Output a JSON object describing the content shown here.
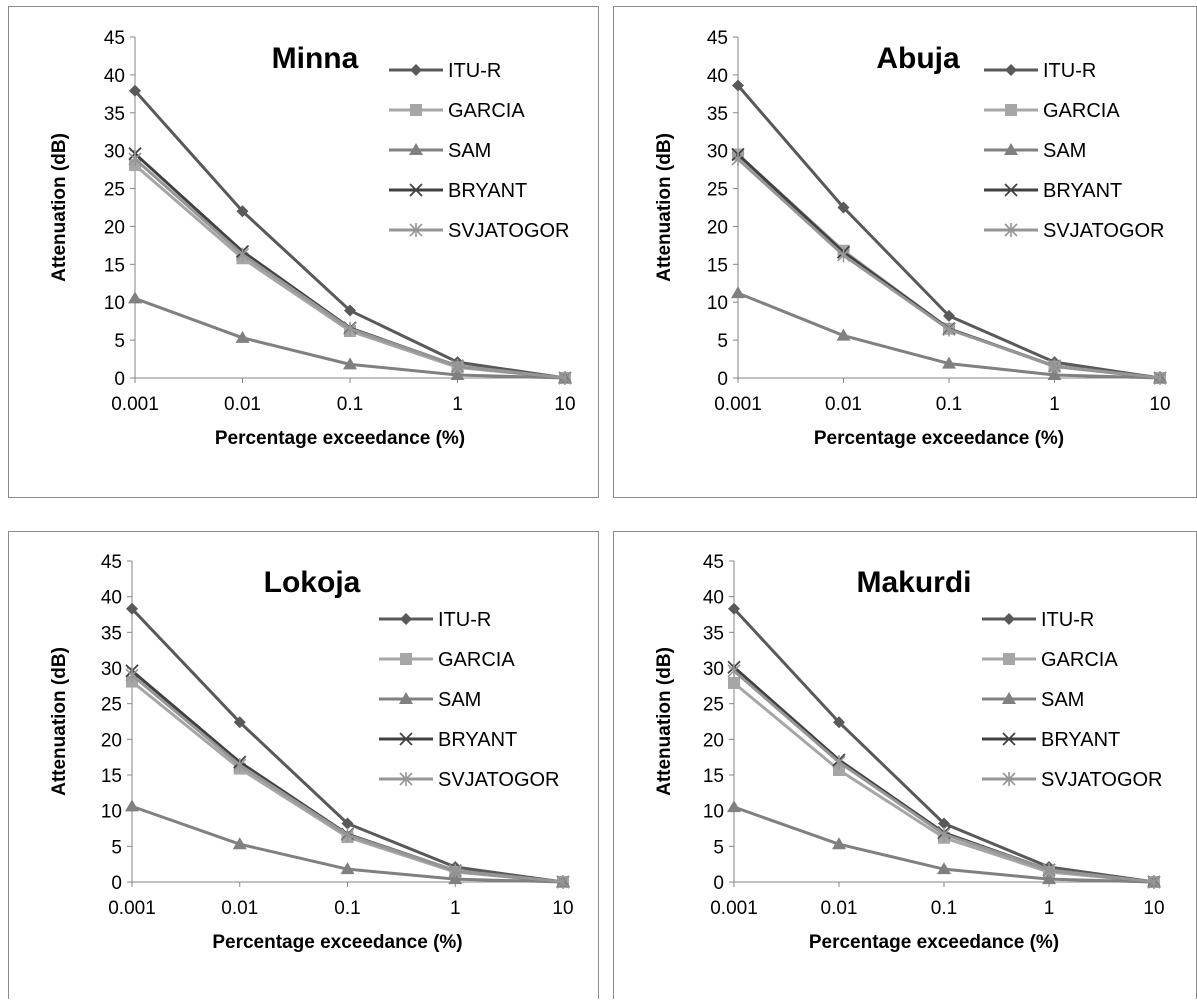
{
  "chart_data": [
    {
      "type": "line",
      "title": "Minna",
      "xlabel": "Percentage exceedance (%)",
      "ylabel": "Attenuation (dB)",
      "x": [
        0.001,
        0.01,
        0.1,
        1,
        10
      ],
      "x_tick_labels": [
        "0.001",
        "0.01",
        "0.1",
        "1",
        "10"
      ],
      "x_scale": "log",
      "ylim": [
        0,
        45
      ],
      "y_ticks": [
        0,
        5,
        10,
        15,
        20,
        25,
        30,
        35,
        40,
        45
      ],
      "grid": false,
      "legend_position": "right",
      "series": [
        {
          "name": "ITU-R",
          "marker": "diamond",
          "color": "#595959",
          "values": [
            37.9,
            22.0,
            8.9,
            2.1,
            0
          ]
        },
        {
          "name": "GARCIA",
          "marker": "square",
          "color": "#a6a6a6",
          "values": [
            28.1,
            15.8,
            6.2,
            1.4,
            0
          ]
        },
        {
          "name": "SAM",
          "marker": "triangle",
          "color": "#808080",
          "values": [
            10.5,
            5.3,
            1.8,
            0.4,
            0
          ]
        },
        {
          "name": "BRYANT",
          "marker": "x",
          "color": "#404040",
          "values": [
            29.6,
            16.7,
            6.6,
            1.6,
            0
          ]
        },
        {
          "name": "SVJATOGOR",
          "marker": "asterisk",
          "color": "#969696",
          "values": [
            28.9,
            16.3,
            6.5,
            1.6,
            0
          ]
        }
      ]
    },
    {
      "type": "line",
      "title": "Abuja",
      "xlabel": "Percentage exceedance (%)",
      "ylabel": "Attenuation (dB)",
      "x": [
        0.001,
        0.01,
        0.1,
        1,
        10
      ],
      "x_tick_labels": [
        "0.001",
        "0.01",
        "0.1",
        "1",
        "10"
      ],
      "x_scale": "log",
      "ylim": [
        0,
        45
      ],
      "y_ticks": [
        0,
        5,
        10,
        15,
        20,
        25,
        30,
        35,
        40,
        45
      ],
      "grid": false,
      "legend_position": "right",
      "series": [
        {
          "name": "ITU-R",
          "marker": "diamond",
          "color": "#595959",
          "values": [
            38.6,
            22.5,
            8.2,
            2.1,
            0
          ]
        },
        {
          "name": "GARCIA",
          "marker": "square",
          "color": "#a6a6a6",
          "values": [
            29.5,
            16.8,
            6.5,
            1.5,
            0
          ]
        },
        {
          "name": "SAM",
          "marker": "triangle",
          "color": "#808080",
          "values": [
            11.2,
            5.6,
            1.9,
            0.4,
            0
          ]
        },
        {
          "name": "BRYANT",
          "marker": "x",
          "color": "#404040",
          "values": [
            29.5,
            16.6,
            6.5,
            1.6,
            0
          ]
        },
        {
          "name": "SVJATOGOR",
          "marker": "asterisk",
          "color": "#969696",
          "values": [
            28.9,
            16.2,
            6.4,
            1.6,
            0
          ]
        }
      ]
    },
    {
      "type": "line",
      "title": "Lokoja",
      "xlabel": "Percentage exceedance (%)",
      "ylabel": "Attenuation (dB)",
      "x": [
        0.001,
        0.01,
        0.1,
        1,
        10
      ],
      "x_tick_labels": [
        "0.001",
        "0.01",
        "0.1",
        "1",
        "10"
      ],
      "x_scale": "log",
      "ylim": [
        0,
        45
      ],
      "y_ticks": [
        0,
        5,
        10,
        15,
        20,
        25,
        30,
        35,
        40,
        45
      ],
      "grid": false,
      "legend_position": "right",
      "series": [
        {
          "name": "ITU-R",
          "marker": "diamond",
          "color": "#595959",
          "values": [
            38.3,
            22.4,
            8.2,
            2.1,
            0
          ]
        },
        {
          "name": "GARCIA",
          "marker": "square",
          "color": "#a6a6a6",
          "values": [
            28.1,
            15.9,
            6.3,
            1.4,
            0
          ]
        },
        {
          "name": "SAM",
          "marker": "triangle",
          "color": "#808080",
          "values": [
            10.6,
            5.3,
            1.8,
            0.4,
            0
          ]
        },
        {
          "name": "BRYANT",
          "marker": "x",
          "color": "#404040",
          "values": [
            29.6,
            16.8,
            6.7,
            1.6,
            0
          ]
        },
        {
          "name": "SVJATOGOR",
          "marker": "asterisk",
          "color": "#969696",
          "values": [
            29.0,
            16.4,
            6.6,
            1.6,
            0
          ]
        }
      ]
    },
    {
      "type": "line",
      "title": "Makurdi",
      "xlabel": "Percentage exceedance (%)",
      "ylabel": "Attenuation (dB)",
      "x": [
        0.001,
        0.01,
        0.1,
        1,
        10
      ],
      "x_tick_labels": [
        "0.001",
        "0.01",
        "0.1",
        "1",
        "10"
      ],
      "x_scale": "log",
      "ylim": [
        0,
        45
      ],
      "y_ticks": [
        0,
        5,
        10,
        15,
        20,
        25,
        30,
        35,
        40,
        45
      ],
      "grid": false,
      "legend_position": "right",
      "series": [
        {
          "name": "ITU-R",
          "marker": "diamond",
          "color": "#595959",
          "values": [
            38.3,
            22.4,
            8.2,
            2.1,
            0
          ]
        },
        {
          "name": "GARCIA",
          "marker": "square",
          "color": "#a6a6a6",
          "values": [
            27.9,
            15.7,
            6.2,
            1.4,
            0
          ]
        },
        {
          "name": "SAM",
          "marker": "triangle",
          "color": "#808080",
          "values": [
            10.5,
            5.3,
            1.8,
            0.4,
            0
          ]
        },
        {
          "name": "BRYANT",
          "marker": "x",
          "color": "#404040",
          "values": [
            30.1,
            17.1,
            6.9,
            1.7,
            0
          ]
        },
        {
          "name": "SVJATOGOR",
          "marker": "asterisk",
          "color": "#969696",
          "values": [
            29.6,
            16.8,
            6.7,
            1.7,
            0
          ]
        }
      ]
    }
  ]
}
